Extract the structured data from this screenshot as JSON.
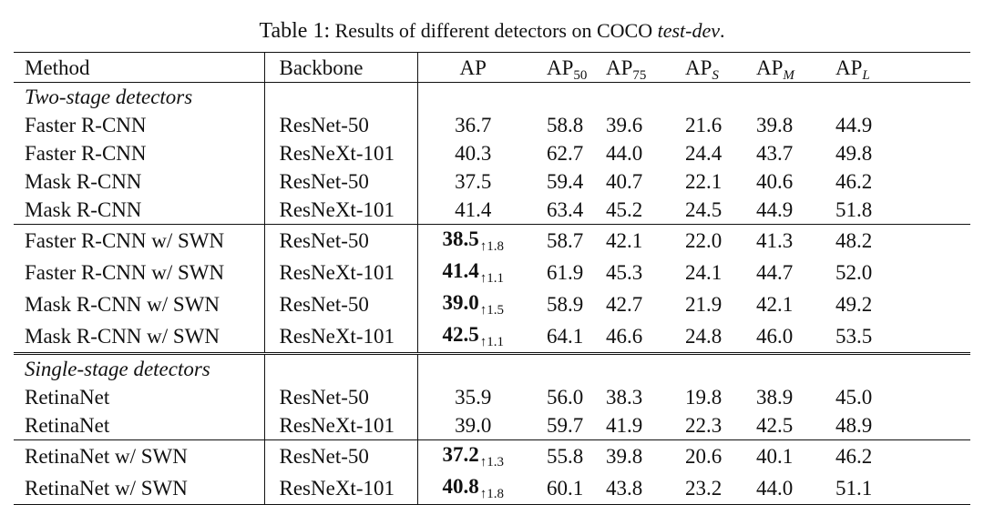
{
  "caption": {
    "lead": "Table 1:",
    "text": "Results of different detectors on COCO",
    "dataset": "test-dev",
    "end": "."
  },
  "header": {
    "method": "Method",
    "backbone": "Backbone",
    "ap": "AP",
    "ap_base": "AP",
    "ap50_sub": "50",
    "ap75_sub": "75",
    "aps_sub": "S",
    "apm_sub": "M",
    "apl_sub": "L"
  },
  "groups": {
    "two_stage": "Two-stage detectors",
    "single_stage": "Single-stage detectors"
  },
  "rows": [
    {
      "method": "Faster R-CNN",
      "backbone": "ResNet-50",
      "ap": "36.7",
      "gain": "",
      "ap50": "58.8",
      "ap75": "39.6",
      "aps": "21.6",
      "apm": "39.8",
      "apl": "44.9"
    },
    {
      "method": "Faster R-CNN",
      "backbone": "ResNeXt-101",
      "ap": "40.3",
      "gain": "",
      "ap50": "62.7",
      "ap75": "44.0",
      "aps": "24.4",
      "apm": "43.7",
      "apl": "49.8"
    },
    {
      "method": "Mask R-CNN",
      "backbone": "ResNet-50",
      "ap": "37.5",
      "gain": "",
      "ap50": "59.4",
      "ap75": "40.7",
      "aps": "22.1",
      "apm": "40.6",
      "apl": "46.2"
    },
    {
      "method": "Mask R-CNN",
      "backbone": "ResNeXt-101",
      "ap": "41.4",
      "gain": "",
      "ap50": "63.4",
      "ap75": "45.2",
      "aps": "24.5",
      "apm": "44.9",
      "apl": "51.8"
    },
    {
      "method": "Faster R-CNN w/ SWN",
      "backbone": "ResNet-50",
      "ap": "38.5",
      "gain": "↑1.8",
      "ap50": "58.7",
      "ap75": "42.1",
      "aps": "22.0",
      "apm": "41.3",
      "apl": "48.2"
    },
    {
      "method": "Faster R-CNN w/ SWN",
      "backbone": "ResNeXt-101",
      "ap": "41.4",
      "gain": "↑1.1",
      "ap50": "61.9",
      "ap75": "45.3",
      "aps": "24.1",
      "apm": "44.7",
      "apl": "52.0"
    },
    {
      "method": "Mask R-CNN w/ SWN",
      "backbone": "ResNet-50",
      "ap": "39.0",
      "gain": "↑1.5",
      "ap50": "58.9",
      "ap75": "42.7",
      "aps": "21.9",
      "apm": "42.1",
      "apl": "49.2"
    },
    {
      "method": "Mask R-CNN w/ SWN",
      "backbone": "ResNeXt-101",
      "ap": "42.5",
      "gain": "↑1.1",
      "ap50": "64.1",
      "ap75": "46.6",
      "aps": "24.8",
      "apm": "46.0",
      "apl": "53.5"
    },
    {
      "method": "RetinaNet",
      "backbone": "ResNet-50",
      "ap": "35.9",
      "gain": "",
      "ap50": "56.0",
      "ap75": "38.3",
      "aps": "19.8",
      "apm": "38.9",
      "apl": "45.0"
    },
    {
      "method": "RetinaNet",
      "backbone": "ResNeXt-101",
      "ap": "39.0",
      "gain": "",
      "ap50": "59.7",
      "ap75": "41.9",
      "aps": "22.3",
      "apm": "42.5",
      "apl": "48.9"
    },
    {
      "method": "RetinaNet w/ SWN",
      "backbone": "ResNet-50",
      "ap": "37.2",
      "gain": "↑1.3",
      "ap50": "55.8",
      "ap75": "39.8",
      "aps": "20.6",
      "apm": "40.1",
      "apl": "46.2"
    },
    {
      "method": "RetinaNet w/ SWN",
      "backbone": "ResNeXt-101",
      "ap": "40.8",
      "gain": "↑1.8",
      "ap50": "60.1",
      "ap75": "43.8",
      "aps": "23.2",
      "apm": "44.0",
      "apl": "51.1"
    }
  ]
}
